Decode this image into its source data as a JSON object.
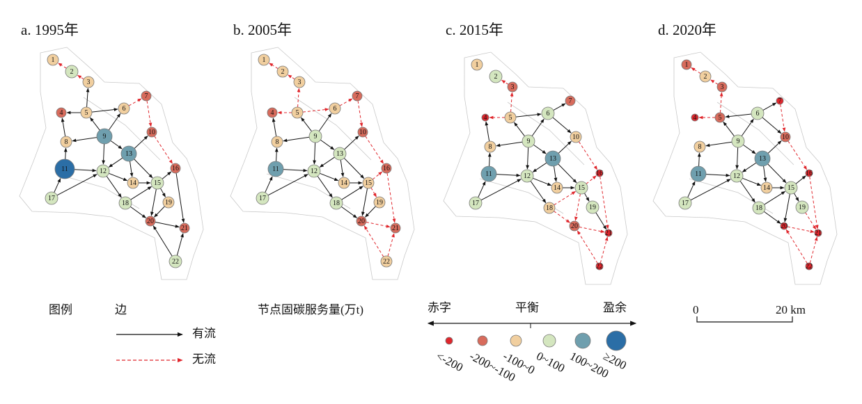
{
  "panels": [
    {
      "title": "a. 1995年",
      "nodes": [
        "1",
        "2",
        "3",
        "4",
        "5",
        "6",
        "7",
        "8",
        "9",
        "10",
        "11",
        "12",
        "13",
        "14",
        "15",
        "16",
        "17",
        "18",
        "19",
        "20",
        "21",
        "22"
      ],
      "classes": [
        2,
        3,
        2,
        1,
        2,
        2,
        1,
        2,
        4,
        1,
        5,
        3,
        4,
        2,
        3,
        1,
        3,
        3,
        2,
        1,
        1,
        3
      ],
      "flow_edges": [
        [
          5,
          3
        ],
        [
          5,
          4
        ],
        [
          8,
          4
        ],
        [
          9,
          5
        ],
        [
          9,
          8
        ],
        [
          5,
          6
        ],
        [
          9,
          6
        ],
        [
          9,
          12
        ],
        [
          11,
          8
        ],
        [
          11,
          12
        ],
        [
          17,
          11
        ],
        [
          17,
          12
        ],
        [
          9,
          13
        ],
        [
          13,
          10
        ],
        [
          13,
          12
        ],
        [
          12,
          14
        ],
        [
          13,
          14
        ],
        [
          13,
          15
        ],
        [
          14,
          15
        ],
        [
          12,
          18
        ],
        [
          18,
          15
        ],
        [
          18,
          20
        ],
        [
          15,
          19
        ],
        [
          15,
          20
        ],
        [
          15,
          16
        ],
        [
          19,
          20
        ],
        [
          20,
          21
        ],
        [
          16,
          21
        ],
        [
          22,
          21
        ],
        [
          22,
          20
        ]
      ],
      "no_flow_edges": [
        [
          2,
          1
        ],
        [
          3,
          2
        ],
        [
          6,
          7
        ],
        [
          7,
          10
        ],
        [
          10,
          16
        ]
      ]
    },
    {
      "title": "b. 2005年",
      "nodes": [
        "1",
        "2",
        "3",
        "4",
        "5",
        "6",
        "7",
        "8",
        "9",
        "10",
        "11",
        "12",
        "13",
        "14",
        "15",
        "16",
        "17",
        "18",
        "19",
        "20",
        "21",
        "22"
      ],
      "classes": [
        2,
        2,
        2,
        1,
        2,
        2,
        1,
        2,
        3,
        1,
        4,
        3,
        3,
        2,
        2,
        1,
        3,
        3,
        2,
        1,
        1,
        2
      ],
      "flow_edges": [
        [
          8,
          4
        ],
        [
          9,
          5
        ],
        [
          9,
          8
        ],
        [
          9,
          6
        ],
        [
          9,
          12
        ],
        [
          11,
          8
        ],
        [
          11,
          12
        ],
        [
          17,
          11
        ],
        [
          17,
          12
        ],
        [
          9,
          13
        ],
        [
          13,
          10
        ],
        [
          13,
          12
        ],
        [
          12,
          14
        ],
        [
          13,
          14
        ],
        [
          13,
          15
        ],
        [
          14,
          15
        ],
        [
          12,
          18
        ],
        [
          18,
          15
        ],
        [
          18,
          20
        ],
        [
          15,
          20
        ],
        [
          19,
          20
        ]
      ],
      "no_flow_edges": [
        [
          2,
          1
        ],
        [
          3,
          2
        ],
        [
          5,
          3
        ],
        [
          5,
          4
        ],
        [
          5,
          6
        ],
        [
          6,
          7
        ],
        [
          7,
          10
        ],
        [
          10,
          16
        ],
        [
          15,
          16
        ],
        [
          16,
          21
        ],
        [
          15,
          19
        ],
        [
          20,
          21
        ],
        [
          22,
          20
        ],
        [
          22,
          21
        ]
      ]
    },
    {
      "title": "c. 2015年",
      "nodes": [
        "1",
        "2",
        "3",
        "4",
        "5",
        "6",
        "7",
        "8",
        "9",
        "10",
        "11",
        "12",
        "13",
        "14",
        "15",
        "16",
        "17",
        "18",
        "19",
        "20",
        "21",
        "22"
      ],
      "classes": [
        2,
        3,
        1,
        0,
        2,
        3,
        1,
        2,
        3,
        2,
        4,
        3,
        4,
        2,
        3,
        0,
        3,
        2,
        3,
        1,
        0,
        0
      ],
      "flow_edges": [
        [
          8,
          4
        ],
        [
          9,
          5
        ],
        [
          9,
          8
        ],
        [
          5,
          6
        ],
        [
          9,
          6
        ],
        [
          6,
          7
        ],
        [
          6,
          10
        ],
        [
          9,
          12
        ],
        [
          11,
          8
        ],
        [
          11,
          12
        ],
        [
          17,
          11
        ],
        [
          17,
          12
        ],
        [
          9,
          13
        ],
        [
          13,
          10
        ],
        [
          13,
          12
        ],
        [
          12,
          14
        ],
        [
          13,
          14
        ],
        [
          13,
          15
        ],
        [
          14,
          15
        ],
        [
          12,
          18
        ],
        [
          15,
          19
        ],
        [
          19,
          21
        ]
      ],
      "no_flow_edges": [
        [
          3,
          2
        ],
        [
          5,
          3
        ],
        [
          5,
          4
        ],
        [
          10,
          16
        ],
        [
          15,
          16
        ],
        [
          16,
          21
        ],
        [
          18,
          15
        ],
        [
          18,
          20
        ],
        [
          15,
          20
        ],
        [
          20,
          21
        ],
        [
          22,
          20
        ],
        [
          22,
          21
        ]
      ]
    },
    {
      "title": "d. 2020年",
      "nodes": [
        "1",
        "2",
        "3",
        "4",
        "5",
        "6",
        "7",
        "8",
        "9",
        "10",
        "11",
        "12",
        "13",
        "14",
        "15",
        "16",
        "17",
        "18",
        "19",
        "20",
        "21",
        "22"
      ],
      "classes": [
        1,
        2,
        1,
        0,
        1,
        3,
        0,
        2,
        3,
        1,
        4,
        3,
        4,
        2,
        3,
        0,
        3,
        3,
        3,
        0,
        0,
        0
      ],
      "flow_edges": [
        [
          9,
          5
        ],
        [
          9,
          8
        ],
        [
          6,
          5
        ],
        [
          9,
          6
        ],
        [
          6,
          7
        ],
        [
          6,
          10
        ],
        [
          9,
          12
        ],
        [
          11,
          8
        ],
        [
          11,
          12
        ],
        [
          17,
          11
        ],
        [
          17,
          12
        ],
        [
          9,
          13
        ],
        [
          13,
          10
        ],
        [
          13,
          12
        ],
        [
          12,
          14
        ],
        [
          13,
          14
        ],
        [
          13,
          15
        ],
        [
          14,
          15
        ],
        [
          12,
          18
        ],
        [
          18,
          15
        ],
        [
          18,
          20
        ],
        [
          15,
          19
        ],
        [
          15,
          20
        ],
        [
          15,
          16
        ]
      ],
      "no_flow_edges": [
        [
          2,
          1
        ],
        [
          3,
          2
        ],
        [
          5,
          3
        ],
        [
          5,
          4
        ],
        [
          7,
          10
        ],
        [
          10,
          16
        ],
        [
          16,
          21
        ],
        [
          19,
          21
        ],
        [
          20,
          21
        ],
        [
          22,
          21
        ],
        [
          22,
          20
        ]
      ]
    }
  ],
  "legend": {
    "title": "图例",
    "edge_title": "边",
    "flow": "有流",
    "no_flow": "无流",
    "node_title": "节点固碳服务量(万t)",
    "deficit": "赤字",
    "balance": "平衡",
    "surplus": "盈余",
    "classes": [
      {
        "label": "<-200",
        "color": "#e0262c"
      },
      {
        "label": "-200~-100",
        "color": "#d86b5c"
      },
      {
        "label": "-100~0",
        "color": "#f1cf9f"
      },
      {
        "label": "0~100",
        "color": "#d4e6bf"
      },
      {
        "label": "100~200",
        "color": "#6f9fae"
      },
      {
        "label": "≥200",
        "color": "#2b6ea6"
      }
    ]
  },
  "scale_bar": {
    "start": "0",
    "end": "20 km"
  }
}
